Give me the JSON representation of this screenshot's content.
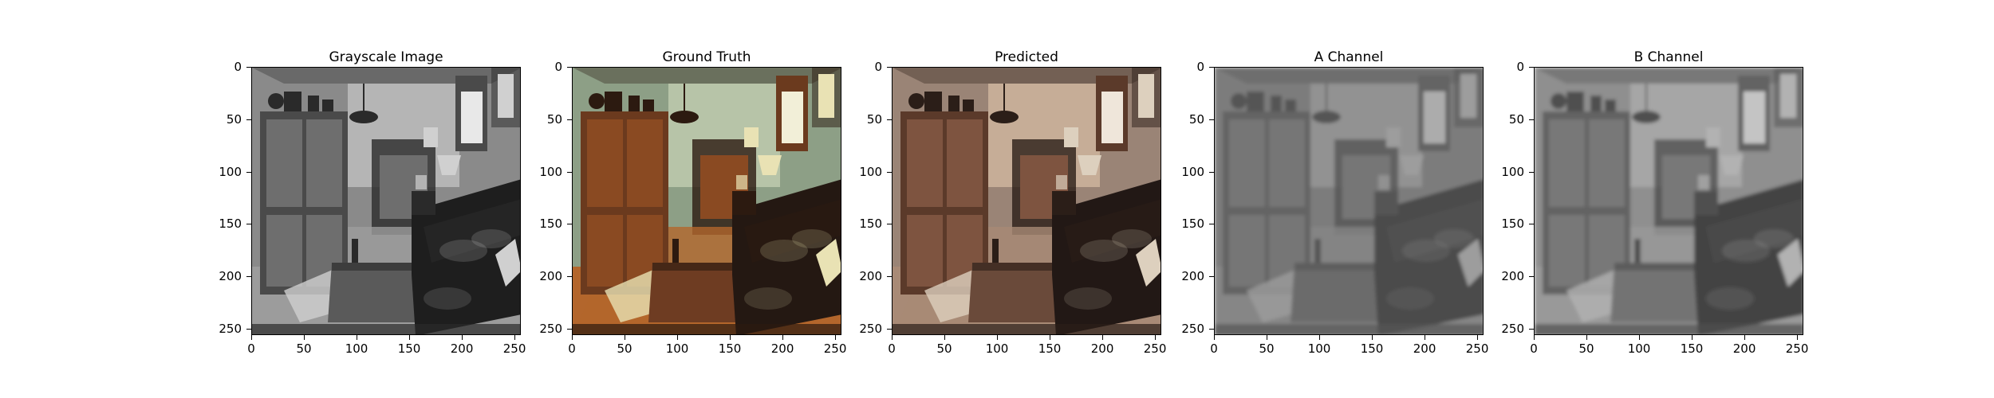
{
  "figure": {
    "panels": [
      {
        "title": "Grayscale Image",
        "mode": "gray"
      },
      {
        "title": "Ground Truth",
        "mode": "color"
      },
      {
        "title": "Predicted",
        "mode": "sepia"
      },
      {
        "title": "A Channel",
        "mode": "blurA"
      },
      {
        "title": "B Channel",
        "mode": "blurB"
      }
    ],
    "y_ticks": [
      "0",
      "50",
      "100",
      "150",
      "200",
      "250"
    ],
    "x_ticks": [
      "0",
      "50",
      "100",
      "150",
      "200",
      "250"
    ]
  }
}
